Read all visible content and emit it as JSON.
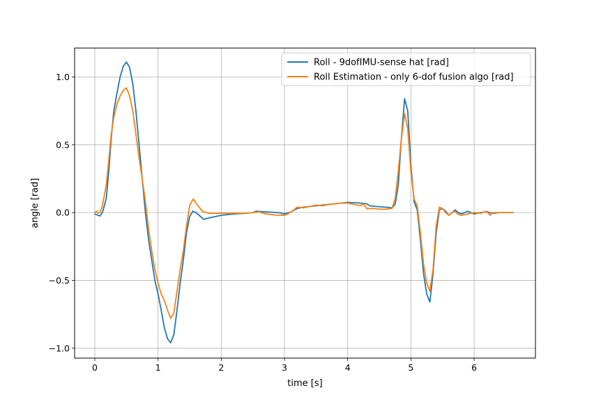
{
  "chart_data": {
    "type": "line",
    "title": "",
    "xlabel": "time [s]",
    "ylabel": "angle [rad]",
    "xlim": [
      -0.32,
      6.97
    ],
    "ylim": [
      -1.073,
      1.213
    ],
    "x_ticks": [
      0,
      1,
      2,
      3,
      4,
      5,
      6
    ],
    "y_ticks": [
      -1.0,
      -0.5,
      0.0,
      0.5,
      1.0
    ],
    "x_tick_labels": [
      "0",
      "1",
      "2",
      "3",
      "4",
      "5",
      "6"
    ],
    "y_tick_labels": [
      "−1.0",
      "−0.5",
      "0.0",
      "0.5",
      "1.0"
    ],
    "grid": true,
    "legend_position": "top-right",
    "series": [
      {
        "name": "Roll - 9dofIMU-sense hat [rad]",
        "color": "#1f77b4",
        "points": [
          [
            0.0,
            -0.01
          ],
          [
            0.05,
            -0.02
          ],
          [
            0.08,
            -0.025
          ],
          [
            0.12,
            0.0
          ],
          [
            0.18,
            0.1
          ],
          [
            0.22,
            0.3
          ],
          [
            0.26,
            0.55
          ],
          [
            0.3,
            0.75
          ],
          [
            0.35,
            0.88
          ],
          [
            0.4,
            1.0
          ],
          [
            0.45,
            1.08
          ],
          [
            0.5,
            1.11
          ],
          [
            0.55,
            1.07
          ],
          [
            0.6,
            0.95
          ],
          [
            0.65,
            0.75
          ],
          [
            0.7,
            0.5
          ],
          [
            0.75,
            0.25
          ],
          [
            0.8,
            0.0
          ],
          [
            0.85,
            -0.2
          ],
          [
            0.9,
            -0.35
          ],
          [
            0.95,
            -0.5
          ],
          [
            1.0,
            -0.6
          ],
          [
            1.05,
            -0.72
          ],
          [
            1.1,
            -0.85
          ],
          [
            1.15,
            -0.93
          ],
          [
            1.2,
            -0.96
          ],
          [
            1.25,
            -0.9
          ],
          [
            1.3,
            -0.72
          ],
          [
            1.35,
            -0.52
          ],
          [
            1.4,
            -0.35
          ],
          [
            1.45,
            -0.15
          ],
          [
            1.5,
            -0.03
          ],
          [
            1.55,
            0.01
          ],
          [
            1.6,
            0.0
          ],
          [
            1.65,
            -0.02
          ],
          [
            1.7,
            -0.04
          ],
          [
            1.72,
            -0.05
          ],
          [
            1.8,
            -0.04
          ],
          [
            1.9,
            -0.03
          ],
          [
            2.0,
            -0.02
          ],
          [
            2.2,
            -0.01
          ],
          [
            2.4,
            -0.005
          ],
          [
            2.5,
            0.0
          ],
          [
            2.55,
            0.01
          ],
          [
            2.7,
            0.005
          ],
          [
            2.9,
            0.0
          ],
          [
            3.0,
            -0.01
          ],
          [
            3.1,
            0.005
          ],
          [
            3.2,
            0.03
          ],
          [
            3.3,
            0.04
          ],
          [
            3.5,
            0.05
          ],
          [
            3.7,
            0.06
          ],
          [
            3.9,
            0.07
          ],
          [
            4.0,
            0.075
          ],
          [
            4.2,
            0.07
          ],
          [
            4.3,
            0.065
          ],
          [
            4.35,
            0.05
          ],
          [
            4.45,
            0.045
          ],
          [
            4.6,
            0.04
          ],
          [
            4.7,
            0.035
          ],
          [
            4.75,
            0.06
          ],
          [
            4.8,
            0.2
          ],
          [
            4.85,
            0.55
          ],
          [
            4.9,
            0.84
          ],
          [
            4.95,
            0.75
          ],
          [
            5.0,
            0.35
          ],
          [
            5.05,
            0.08
          ],
          [
            5.1,
            0.02
          ],
          [
            5.15,
            -0.2
          ],
          [
            5.2,
            -0.45
          ],
          [
            5.25,
            -0.6
          ],
          [
            5.3,
            -0.66
          ],
          [
            5.35,
            -0.45
          ],
          [
            5.4,
            -0.15
          ],
          [
            5.45,
            0.02
          ],
          [
            5.5,
            0.03
          ],
          [
            5.55,
            0.01
          ],
          [
            5.6,
            -0.02
          ],
          [
            5.65,
            0.0
          ],
          [
            5.7,
            0.02
          ],
          [
            5.75,
            0.0
          ],
          [
            5.8,
            -0.01
          ],
          [
            5.9,
            0.01
          ],
          [
            6.0,
            -0.01
          ],
          [
            6.1,
            0.0
          ],
          [
            6.2,
            0.005
          ],
          [
            6.3,
            -0.005
          ],
          [
            6.4,
            0.0
          ],
          [
            6.5,
            0.0
          ],
          [
            6.62,
            0.0
          ]
        ]
      },
      {
        "name": "Roll Estimation - only 6-dof fusion algo [rad]",
        "color": "#ff7f0e",
        "points": [
          [
            0.0,
            0.0
          ],
          [
            0.03,
            0.01
          ],
          [
            0.05,
            -0.005
          ],
          [
            0.08,
            0.0
          ],
          [
            0.12,
            0.05
          ],
          [
            0.18,
            0.2
          ],
          [
            0.22,
            0.38
          ],
          [
            0.26,
            0.58
          ],
          [
            0.3,
            0.7
          ],
          [
            0.35,
            0.8
          ],
          [
            0.4,
            0.86
          ],
          [
            0.45,
            0.9
          ],
          [
            0.5,
            0.92
          ],
          [
            0.55,
            0.86
          ],
          [
            0.6,
            0.75
          ],
          [
            0.65,
            0.58
          ],
          [
            0.7,
            0.4
          ],
          [
            0.75,
            0.25
          ],
          [
            0.8,
            0.08
          ],
          [
            0.85,
            -0.12
          ],
          [
            0.9,
            -0.28
          ],
          [
            0.95,
            -0.42
          ],
          [
            1.0,
            -0.52
          ],
          [
            1.05,
            -0.6
          ],
          [
            1.1,
            -0.65
          ],
          [
            1.15,
            -0.72
          ],
          [
            1.2,
            -0.78
          ],
          [
            1.25,
            -0.74
          ],
          [
            1.3,
            -0.58
          ],
          [
            1.35,
            -0.42
          ],
          [
            1.4,
            -0.28
          ],
          [
            1.45,
            -0.1
          ],
          [
            1.5,
            0.05
          ],
          [
            1.53,
            0.08
          ],
          [
            1.56,
            0.1
          ],
          [
            1.6,
            0.07
          ],
          [
            1.65,
            0.04
          ],
          [
            1.7,
            0.01
          ],
          [
            1.8,
            -0.005
          ],
          [
            2.0,
            -0.005
          ],
          [
            2.2,
            -0.005
          ],
          [
            2.4,
            -0.005
          ],
          [
            2.5,
            0.0
          ],
          [
            2.6,
            0.005
          ],
          [
            2.7,
            -0.01
          ],
          [
            2.8,
            -0.015
          ],
          [
            2.9,
            -0.02
          ],
          [
            3.0,
            -0.02
          ],
          [
            3.05,
            -0.01
          ],
          [
            3.15,
            0.02
          ],
          [
            3.2,
            0.04
          ],
          [
            3.3,
            0.035
          ],
          [
            3.4,
            0.045
          ],
          [
            3.5,
            0.055
          ],
          [
            3.6,
            0.05
          ],
          [
            3.7,
            0.06
          ],
          [
            3.8,
            0.065
          ],
          [
            3.9,
            0.07
          ],
          [
            4.0,
            0.07
          ],
          [
            4.1,
            0.06
          ],
          [
            4.2,
            0.05
          ],
          [
            4.25,
            0.065
          ],
          [
            4.3,
            0.03
          ],
          [
            4.4,
            0.03
          ],
          [
            4.5,
            0.025
          ],
          [
            4.6,
            0.025
          ],
          [
            4.7,
            0.03
          ],
          [
            4.75,
            0.1
          ],
          [
            4.8,
            0.3
          ],
          [
            4.85,
            0.55
          ],
          [
            4.9,
            0.73
          ],
          [
            4.95,
            0.62
          ],
          [
            5.0,
            0.3
          ],
          [
            5.05,
            0.1
          ],
          [
            5.1,
            0.05
          ],
          [
            5.15,
            -0.15
          ],
          [
            5.2,
            -0.38
          ],
          [
            5.25,
            -0.52
          ],
          [
            5.3,
            -0.58
          ],
          [
            5.35,
            -0.42
          ],
          [
            5.4,
            -0.1
          ],
          [
            5.45,
            0.04
          ],
          [
            5.5,
            0.03
          ],
          [
            5.55,
            0.0
          ],
          [
            5.6,
            -0.02
          ],
          [
            5.65,
            0.0
          ],
          [
            5.7,
            0.01
          ],
          [
            5.75,
            -0.015
          ],
          [
            5.8,
            -0.02
          ],
          [
            5.9,
            -0.01
          ],
          [
            6.0,
            0.0
          ],
          [
            6.1,
            -0.005
          ],
          [
            6.2,
            0.01
          ],
          [
            6.25,
            -0.02
          ],
          [
            6.3,
            0.0
          ],
          [
            6.4,
            0.0
          ],
          [
            6.5,
            0.0
          ],
          [
            6.62,
            0.0
          ]
        ]
      }
    ]
  }
}
